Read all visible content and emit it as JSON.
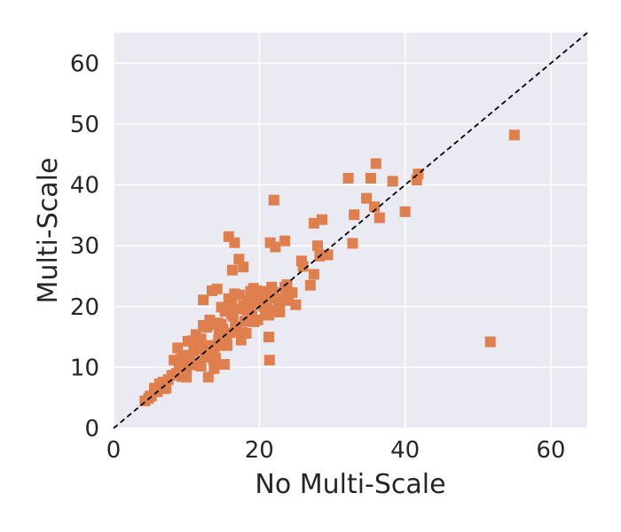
{
  "chart_data": {
    "type": "scatter",
    "title": "",
    "xlabel": "No Multi-Scale",
    "ylabel": "Multi-Scale",
    "xlim": [
      0,
      65
    ],
    "ylim": [
      0,
      65
    ],
    "xticks": [
      0,
      20,
      40,
      60
    ],
    "yticks": [
      0,
      10,
      20,
      30,
      40,
      50,
      60
    ],
    "grid": true,
    "marker": "square",
    "colors": {
      "point": "#E07F4E",
      "background": "#EAEAF2",
      "grid": "#FFFFFF",
      "reference_line": "#000000"
    },
    "reference_line": {
      "style": "dashed",
      "from": [
        0,
        0
      ],
      "to": [
        65,
        65
      ]
    },
    "series": [
      {
        "x": [
          4.3,
          4.8,
          5.2,
          5.6,
          6.0,
          5.0,
          6.3,
          7.0,
          7.5,
          6.8,
          8.0,
          8.6,
          7.2,
          9.0,
          9.4,
          8.8,
          10.0,
          10.5,
          9.8,
          11.0,
          11.6,
          12.0,
          12.5,
          11.3,
          13.0,
          13.4,
          12.8,
          14.0,
          14.5,
          13.7,
          15.0,
          15.5,
          14.8,
          16.0,
          16.4,
          15.6,
          17.0,
          17.5,
          16.7,
          18.0,
          18.5,
          17.8,
          19.0,
          19.5,
          18.6,
          20.0,
          20.6,
          19.7,
          21.0,
          21.5,
          20.8,
          22.0,
          22.6,
          21.7,
          23.0,
          23.5,
          22.8,
          24.0,
          24.5,
          23.8,
          25.0,
          9.2,
          10.2,
          11.8,
          12.3,
          13.8,
          14.3,
          15.3,
          16.8,
          17.3,
          18.3,
          19.3,
          20.3,
          21.3,
          22.3,
          8.3,
          9.6,
          10.8,
          12.0,
          13.2,
          14.6,
          15.8,
          16.2,
          17.6,
          18.8,
          19.8,
          20.8,
          21.8,
          22.8,
          23.8,
          10.0,
          11.2,
          12.6,
          13.6,
          14.0,
          15.2,
          16.6,
          17.8,
          18.2,
          19.2,
          12.3,
          13.5,
          14.2,
          14.8,
          15.2,
          16.2,
          13.0,
          14.4,
          12.0,
          13.8,
          15.8,
          16.6,
          17.2,
          17.8,
          16.3,
          22.0,
          23.5,
          22.2,
          27.5,
          28.6,
          28.0,
          21.5,
          21.3,
          21.4,
          27.0,
          27.5,
          28.3,
          29.4,
          26.0,
          25.8,
          32.2,
          32.8,
          34.7,
          33.0,
          35.3,
          36.0,
          35.8,
          36.5,
          40.0,
          38.3,
          41.6,
          41.8,
          51.7,
          55.0
        ],
        "y": [
          4.5,
          4.9,
          5.3,
          6.6,
          6.0,
          5.3,
          7.3,
          6.5,
          8.0,
          7.6,
          8.7,
          9.0,
          6.6,
          10.2,
          8.5,
          13.2,
          9.1,
          11.6,
          10.8,
          12.6,
          10.6,
          13.2,
          11.7,
          15.4,
          13.6,
          12.0,
          16.6,
          13.6,
          15.9,
          11.3,
          16.3,
          14.5,
          17.1,
          15.7,
          18.4,
          13.6,
          19.6,
          14.5,
          16.8,
          17.6,
          21.0,
          15.7,
          18.8,
          20.6,
          19.8,
          21.3,
          20.0,
          22.6,
          19.9,
          21.7,
          18.6,
          22.3,
          20.7,
          23.2,
          21.3,
          23.2,
          19.1,
          21.0,
          22.3,
          23.6,
          20.3,
          11.4,
          14.3,
          13.3,
          16.9,
          12.1,
          17.3,
          19.2,
          16.1,
          21.9,
          19.4,
          17.5,
          20.6,
          18.6,
          21.4,
          11.2,
          12.0,
          14.4,
          10.2,
          17.8,
          13.6,
          21.3,
          18.8,
          15.8,
          22.5,
          17.8,
          22.5,
          19.4,
          20.7,
          22.1,
          8.4,
          10.4,
          12.8,
          17.0,
          11.5,
          14.4,
          22.1,
          20.1,
          15.6,
          23.0,
          21.1,
          22.6,
          22.9,
          19.9,
          10.5,
          20.5,
          8.4,
          14.6,
          14.7,
          9.8,
          31.5,
          30.5,
          27.8,
          26.5,
          26.0,
          37.5,
          30.8,
          29.8,
          33.7,
          34.3,
          30.0,
          30.5,
          15.0,
          11.2,
          23.5,
          25.3,
          28.3,
          28.5,
          26.6,
          27.5,
          41.1,
          30.4,
          37.8,
          35.1,
          41.1,
          43.5,
          36.4,
          34.6,
          35.6,
          40.6,
          40.8,
          41.8,
          14.2,
          48.2
        ]
      }
    ]
  }
}
